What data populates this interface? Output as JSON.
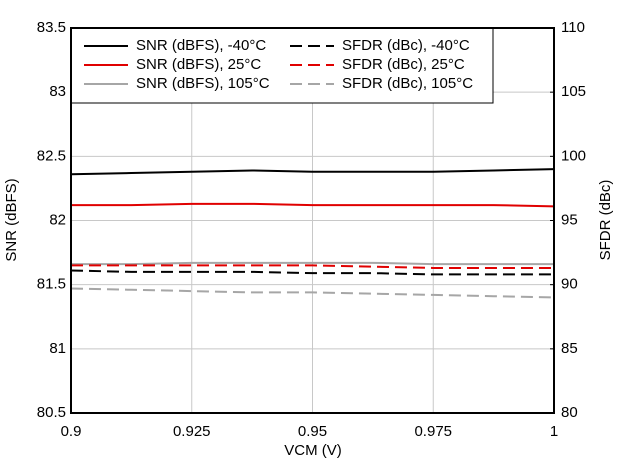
{
  "chart_data": {
    "type": "line",
    "xlabel": "VCM (V)",
    "ylabel": "SNR (dBFS)",
    "y2label": "SFDR (dBc)",
    "x": [
      0.9,
      0.9125,
      0.925,
      0.9375,
      0.95,
      0.9625,
      0.975,
      0.9875,
      1
    ],
    "xlim": [
      0.9,
      1
    ],
    "xticks": [
      0.9,
      0.925,
      0.95,
      0.975,
      1
    ],
    "ylim": [
      80.5,
      83.5
    ],
    "yticks": [
      80.5,
      81,
      81.5,
      82,
      82.5,
      83,
      83.5
    ],
    "y2lim": [
      80,
      110
    ],
    "y2ticks": [
      80,
      85,
      90,
      95,
      100,
      105,
      110
    ],
    "grid": true,
    "series": [
      {
        "name": "SNR (dBFS), -40°C",
        "color": "#000000",
        "style": "solid",
        "values": [
          82.36,
          82.37,
          82.38,
          82.39,
          82.38,
          82.38,
          82.38,
          82.39,
          82.4
        ]
      },
      {
        "name": "SNR (dBFS), 25°C",
        "color": "#e00000",
        "style": "solid",
        "values": [
          82.12,
          82.12,
          82.13,
          82.13,
          82.12,
          82.12,
          82.12,
          82.12,
          82.11
        ]
      },
      {
        "name": "SNR (dBFS), 105°C",
        "color": "#a6a6a6",
        "style": "solid",
        "values": [
          81.66,
          81.66,
          81.67,
          81.67,
          81.67,
          81.67,
          81.66,
          81.66,
          81.66
        ]
      },
      {
        "name": "SFDR (dBc), -40°C",
        "color": "#000000",
        "style": "dashed",
        "axis": "y2",
        "values": [
          91.1,
          91.0,
          91.0,
          91.0,
          90.9,
          90.9,
          90.8,
          90.8,
          90.8
        ]
      },
      {
        "name": "SFDR (dBc), 25°C",
        "color": "#e00000",
        "style": "dashed",
        "axis": "y2",
        "values": [
          91.5,
          91.5,
          91.5,
          91.5,
          91.5,
          91.4,
          91.3,
          91.3,
          91.3
        ]
      },
      {
        "name": "SFDR (dBc), 105°C",
        "color": "#a6a6a6",
        "style": "dashed",
        "axis": "y2",
        "values": [
          89.7,
          89.6,
          89.5,
          89.4,
          89.4,
          89.3,
          89.2,
          89.1,
          89.0
        ]
      }
    ]
  }
}
